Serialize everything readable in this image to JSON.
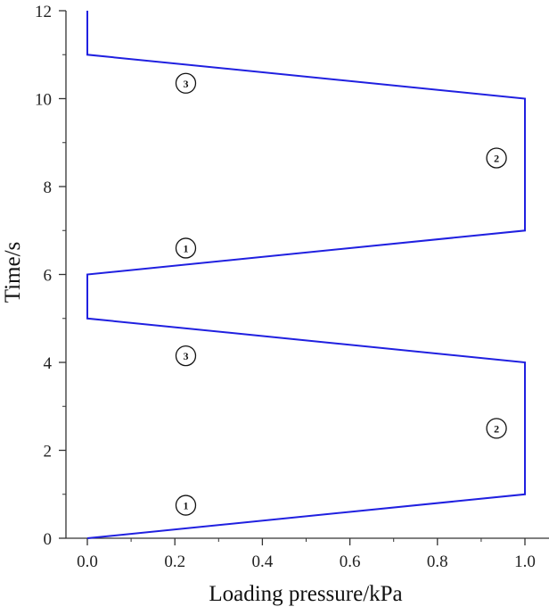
{
  "chart_data": {
    "type": "line",
    "xlabel": "Loading pressure/kPa",
    "ylabel": "Time/s",
    "xlim": [
      -0.05,
      1.05
    ],
    "ylim": [
      0,
      12
    ],
    "xticks": [
      "0.0",
      "0.2",
      "0.4",
      "0.6",
      "0.8",
      "1.0"
    ],
    "xtick_values": [
      0,
      0.2,
      0.4,
      0.6,
      0.8,
      1.0
    ],
    "yticks": [
      "0",
      "2",
      "4",
      "6",
      "8",
      "10",
      "12"
    ],
    "ytick_values": [
      0,
      2,
      4,
      6,
      8,
      10,
      12
    ],
    "line_color": "#2020e0",
    "series": [
      {
        "x": [
          0,
          1.0,
          1.0,
          0,
          0,
          1.0,
          1.0,
          0,
          0
        ],
        "y": [
          0,
          1,
          4,
          5,
          6,
          7,
          10,
          11,
          12
        ]
      }
    ],
    "annotations": [
      {
        "text": "1",
        "x": 0.225,
        "y": 0.75
      },
      {
        "text": "2",
        "x": 0.935,
        "y": 2.5
      },
      {
        "text": "3",
        "x": 0.225,
        "y": 4.15
      },
      {
        "text": "1",
        "x": 0.225,
        "y": 6.6
      },
      {
        "text": "2",
        "x": 0.935,
        "y": 8.65
      },
      {
        "text": "3",
        "x": 0.225,
        "y": 10.35
      }
    ]
  }
}
